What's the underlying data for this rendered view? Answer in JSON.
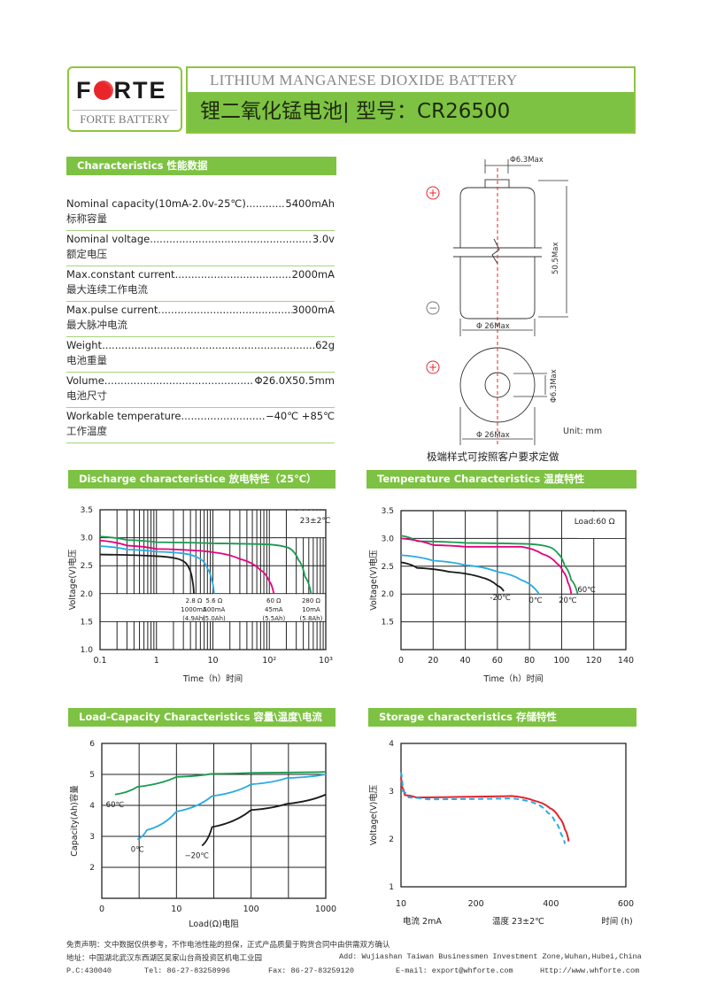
{
  "logo": {
    "brand": "FORTE",
    "subtitle": "FORTE BATTERY"
  },
  "header": {
    "title_en": "LITHIUM MANGANESE DIOXIDE BATTERY",
    "title_cn": "锂二氧化锰电池|  型号：CR26500"
  },
  "characteristics": {
    "heading": "Characteristics  性能数据",
    "items": [
      {
        "label": "Nominal capacity(10mA-2.0v-25℃)",
        "value": "5400mAh",
        "cn": "标称容量"
      },
      {
        "label": "Nominal voltage",
        "value": "3.0v",
        "cn": "额定电压"
      },
      {
        "label": "Max.constant current",
        "value": "2000mA",
        "cn": "最大连续工作电流"
      },
      {
        "label": "Max.pulse current",
        "value": "3000mA",
        "cn": "最大脉冲电流"
      },
      {
        "label": "Weight",
        "value": "62g",
        "cn": "电池重量"
      },
      {
        "label": "Volume",
        "value": "Φ26.0X50.5mm",
        "cn": "电池尺寸"
      },
      {
        "label": "Workable temperature",
        "value": "−40℃   +85℃",
        "cn": "工作温度"
      }
    ]
  },
  "drawing": {
    "terminal_dia": "Φ6.3Max",
    "height": "50.5Max",
    "body_dia": "Φ 26Max",
    "top_terminal_dia": "Φ6.3Max",
    "top_body_dia": "Φ 26Max",
    "plus": "+",
    "minus": "−",
    "unit": "Unit: mm",
    "note": "极端样式可按照客户要求定做",
    "centerline_color": "#e8262a"
  },
  "colors": {
    "accent": "#7dc242",
    "black": "#1a1a1a",
    "blue": "#29abe2",
    "magenta": "#e6007e",
    "green": "#1a9b50",
    "red": "#e3242b"
  },
  "chart_data": [
    {
      "type": "line",
      "heading": "Discharge characteristice  放电特性（25℃）",
      "xlabel": "Time（h）时间",
      "ylabel": "Voltage(V)电压",
      "xscale": "log",
      "xlim": [
        0.1,
        1000
      ],
      "ylim": [
        1.0,
        3.5
      ],
      "xticks": [
        "0.1",
        "1",
        "10",
        "10²",
        "10³"
      ],
      "yticks": [
        "3.5",
        "3.0",
        "2.5",
        "2.0",
        "1.5",
        "1.0"
      ],
      "grid": true,
      "annotation": "23±2℃",
      "series": [
        {
          "color": "#1a1a1a",
          "labels": [
            "2.8 Ω",
            "1000mA",
            "(4.9Ah)"
          ],
          "x": [
            0.1,
            1,
            2,
            3,
            3.8,
            4.4,
            4.6
          ],
          "y": [
            2.7,
            2.67,
            2.64,
            2.58,
            2.45,
            2.2,
            2.0
          ]
        },
        {
          "color": "#29abe2",
          "labels": [
            "5.6 Ω",
            "500mA",
            "(5.0Ah)"
          ],
          "x": [
            0.1,
            0.3,
            1,
            3,
            6,
            8,
            9.5,
            10.5
          ],
          "y": [
            2.85,
            2.79,
            2.75,
            2.72,
            2.62,
            2.45,
            2.25,
            2.0
          ]
        },
        {
          "color": "#e6007e",
          "labels": [
            "60 Ω",
            "45mA",
            "(5.5Ah)"
          ],
          "x": [
            0.1,
            0.3,
            1,
            5,
            10,
            30,
            70,
            100,
            120
          ],
          "y": [
            2.95,
            2.86,
            2.8,
            2.77,
            2.74,
            2.62,
            2.42,
            2.22,
            2.0
          ]
        },
        {
          "color": "#1a9b50",
          "labels": [
            "280 Ω",
            "10mA",
            "(5.8Ah)"
          ],
          "x": [
            0.1,
            0.3,
            1,
            10,
            100,
            220,
            330,
            430,
            550
          ],
          "y": [
            3.02,
            2.96,
            2.92,
            2.9,
            2.88,
            2.82,
            2.6,
            2.3,
            2.0
          ]
        }
      ]
    },
    {
      "type": "line",
      "heading": "Temperature Characteristics  温度特性",
      "xlabel": "Time（h）时间",
      "ylabel": "Voltage(V)电压",
      "xlim": [
        0,
        140
      ],
      "ylim": [
        1.0,
        3.5
      ],
      "xticks": [
        "0",
        "20",
        "40",
        "60",
        "80",
        "100",
        "120",
        "140"
      ],
      "yticks": [
        "3.5",
        "3.0",
        "2.5",
        "2.0",
        "1.5"
      ],
      "grid": true,
      "annotation": "Load:60 Ω",
      "series": [
        {
          "color": "#1a9b50",
          "labels": [
            "60℃"
          ],
          "x": [
            0,
            10,
            40,
            80,
            92,
            98,
            102,
            106,
            110
          ],
          "y": [
            3.05,
            2.95,
            2.92,
            2.9,
            2.85,
            2.72,
            2.5,
            2.25,
            2.0
          ]
        },
        {
          "color": "#e6007e",
          "labels": [
            "20℃"
          ],
          "x": [
            0,
            20,
            40,
            75,
            88,
            97,
            101,
            104,
            106
          ],
          "y": [
            3.0,
            2.88,
            2.85,
            2.85,
            2.72,
            2.55,
            2.4,
            2.2,
            2.0
          ]
        },
        {
          "color": "#29abe2",
          "labels": [
            "0℃"
          ],
          "x": [
            0,
            20,
            40,
            60,
            75,
            86
          ],
          "y": [
            2.7,
            2.6,
            2.52,
            2.4,
            2.25,
            2.0
          ]
        },
        {
          "color": "#1a1a1a",
          "labels": [
            "-20℃"
          ],
          "x": [
            0,
            10,
            30,
            50,
            60,
            64
          ],
          "y": [
            2.57,
            2.47,
            2.4,
            2.3,
            2.15,
            2.05
          ]
        }
      ]
    },
    {
      "type": "line",
      "heading": "Load-Capacity Characteristics  容量\\温度\\电流",
      "xlabel": "Load(Ω)电阻",
      "ylabel": "Capacity(Ah)容量",
      "xscale": "log",
      "xlim": [
        1,
        1000
      ],
      "ylim": [
        1,
        6
      ],
      "xticks": [
        "0",
        "10",
        "100",
        "1000"
      ],
      "yticks": [
        "6",
        "5",
        "4",
        "3",
        "2"
      ],
      "grid": true,
      "series": [
        {
          "color": "#1a9b50",
          "labels": [
            "60℃"
          ],
          "x": [
            1.5,
            3,
            10,
            30,
            100,
            1000
          ],
          "y": [
            4.35,
            4.6,
            4.92,
            5.02,
            5.05,
            5.08
          ]
        },
        {
          "color": "#29abe2",
          "labels": [
            "0℃"
          ],
          "x": [
            3,
            4,
            10,
            30,
            100,
            300,
            1000
          ],
          "y": [
            2.9,
            3.2,
            3.8,
            4.3,
            4.68,
            4.88,
            5.0
          ]
        },
        {
          "color": "#1a1a1a",
          "labels": [
            "−20℃"
          ],
          "x": [
            22,
            30,
            100,
            300,
            1000
          ],
          "y": [
            2.7,
            3.3,
            3.85,
            4.05,
            4.35
          ]
        }
      ]
    },
    {
      "type": "line",
      "heading": "Storage characteristics  存储特性",
      "xlabel": "时间 (h)",
      "ylabel": "Voltage(V)电压",
      "xlim": [
        10,
        600
      ],
      "ylim": [
        1,
        4
      ],
      "xticks": [
        "10",
        "200",
        "400",
        "600"
      ],
      "yticks": [
        "4",
        "3",
        "2",
        "1"
      ],
      "grid": false,
      "notes": [
        "电流  2mA",
        "温度  23±2℃"
      ],
      "series": [
        {
          "color": "#e3242b",
          "style": "solid",
          "x": [
            10,
            12,
            20,
            50,
            150,
            300,
            360,
            400,
            425,
            440,
            450
          ],
          "y": [
            3.3,
            3.1,
            2.92,
            2.87,
            2.88,
            2.9,
            2.8,
            2.65,
            2.45,
            2.2,
            1.95
          ]
        },
        {
          "color": "#29abe2",
          "style": "dashed",
          "x": [
            10,
            15,
            30,
            80,
            300,
            360,
            395,
            415,
            430,
            440
          ],
          "y": [
            3.4,
            3.0,
            2.87,
            2.83,
            2.85,
            2.75,
            2.55,
            2.35,
            2.1,
            1.9
          ]
        }
      ]
    }
  ],
  "footer": {
    "disclaimer": "免责声明：文中数据仅供参考，不作电池性能的担保，正式产品质量于购货合同中由供需双方确认",
    "address_cn": "地址：中国湖北武汉东西湖区吴家山台商投资区机电工业园",
    "address_en": "Add: Wujiashan Taiwan Businessmen Investment Zone,Wuhan,Hubei,China",
    "postcode": "P.C:430040",
    "tel": "Tel: 86-27-83258996",
    "fax": "Fax: 86-27-83259120",
    "email": "E-mail: export@whforte.com",
    "web": "Http://www.whforte.com"
  }
}
